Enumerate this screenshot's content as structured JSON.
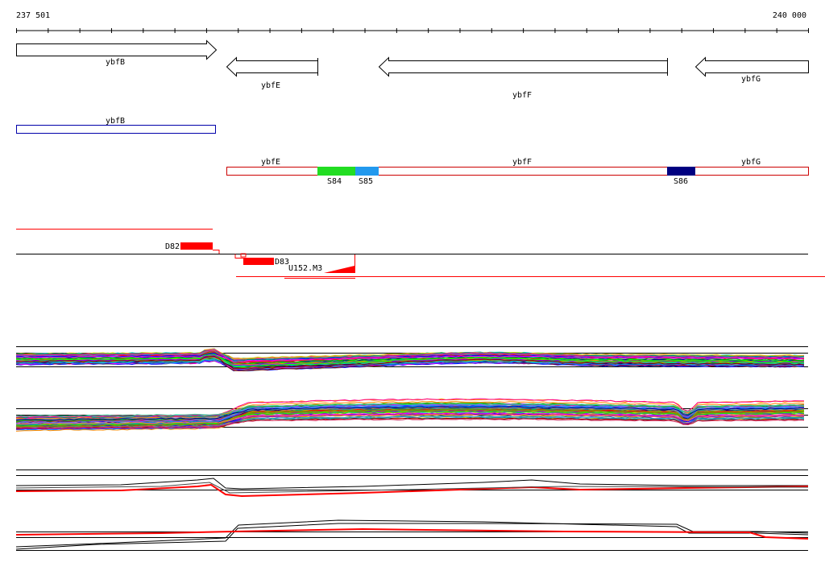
{
  "ruler": {
    "start_label": "237 501",
    "end_label": "240 000"
  },
  "genes": [
    {
      "name": "ybfB",
      "strand": "+"
    },
    {
      "name": "ybfE",
      "strand": "-"
    },
    {
      "name": "ybfF",
      "strand": "-"
    },
    {
      "name": "ybfG",
      "strand": "-"
    }
  ],
  "transcript_track": {
    "segments": [
      {
        "name": "ybfB",
        "color": "#0000aa"
      },
      {
        "name": "ybfE",
        "color": "#cc0000"
      },
      {
        "name": "ybfF",
        "color": "#cc0000"
      },
      {
        "name": "ybfG",
        "color": "#cc0000"
      }
    ]
  },
  "sites": [
    {
      "name": "S84",
      "color": "#22dd22"
    },
    {
      "name": "S85",
      "color": "#2299ee"
    },
    {
      "name": "S86",
      "color": "#000080"
    }
  ],
  "features": [
    {
      "name": "D82",
      "color": "#ff0000"
    },
    {
      "name": "D83",
      "color": "#ff0000"
    },
    {
      "name": "U152.M3",
      "color": "#ff0000"
    }
  ],
  "colors": {
    "feature_red": "#ff0000",
    "outline_red": "#cc0000",
    "outline_blue": "#0000aa",
    "axis": "#000000"
  }
}
